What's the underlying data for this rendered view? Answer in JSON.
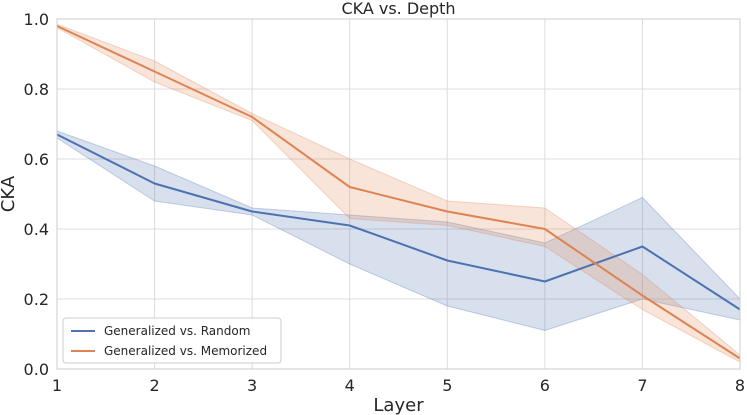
{
  "chart_data": {
    "type": "line",
    "title": "CKA vs. Depth",
    "xlabel": "Layer",
    "ylabel": "CKA",
    "xlim": [
      1,
      8
    ],
    "ylim": [
      0.0,
      1.0
    ],
    "xticks": [
      1,
      2,
      3,
      4,
      5,
      6,
      7,
      8
    ],
    "yticks": [
      0.0,
      0.2,
      0.4,
      0.6,
      0.8,
      1.0
    ],
    "ytick_labels": [
      "0.0",
      "0.2",
      "0.4",
      "0.6",
      "0.8",
      "1.0"
    ],
    "grid": true,
    "legend_position": "lower-left",
    "x": [
      1,
      2,
      3,
      4,
      5,
      6,
      7,
      8
    ],
    "series": [
      {
        "name": "Generalized vs. Random",
        "color": "#4c72b0",
        "values": [
          0.67,
          0.53,
          0.45,
          0.41,
          0.31,
          0.25,
          0.35,
          0.17
        ],
        "lower": [
          0.66,
          0.48,
          0.44,
          0.3,
          0.18,
          0.11,
          0.2,
          0.14
        ],
        "upper": [
          0.68,
          0.58,
          0.46,
          0.44,
          0.42,
          0.36,
          0.49,
          0.2
        ]
      },
      {
        "name": "Generalized vs. Memorized",
        "color": "#dd8452",
        "values": [
          0.98,
          0.85,
          0.72,
          0.52,
          0.45,
          0.4,
          0.21,
          0.03
        ],
        "lower": [
          0.975,
          0.82,
          0.71,
          0.43,
          0.41,
          0.35,
          0.17,
          0.02
        ],
        "upper": [
          0.985,
          0.88,
          0.73,
          0.6,
          0.48,
          0.46,
          0.27,
          0.04
        ]
      }
    ]
  }
}
